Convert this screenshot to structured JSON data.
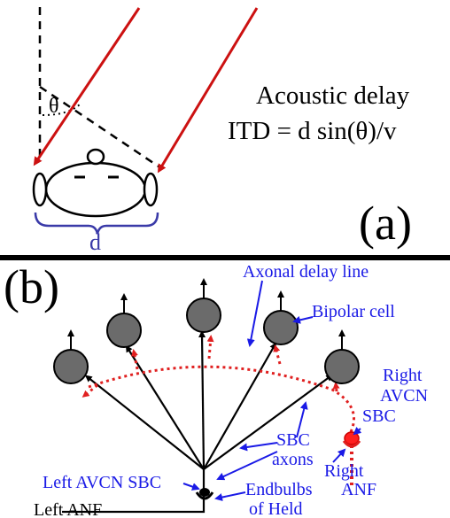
{
  "panel_a": {
    "label": "(a)",
    "theta": "θ",
    "d_label": "d",
    "acoustic_delay": "Acoustic delay",
    "itd_formula": "ITD = d sin(θ)/v"
  },
  "panel_b": {
    "label": "(b)",
    "labels": {
      "axonal_delay_line": "Axonal delay line",
      "bipolar_cell": "Bipolar cell",
      "right_avcn": "Right",
      "right_avcn_2": "AVCN",
      "right_sbc": "SBC",
      "sbc_axons_1": "SBC",
      "sbc_axons_2": "axons",
      "right_anf_1": "Right",
      "right_anf_2": "ANF",
      "left_avcn_sbc": "Left AVCN SBC",
      "endbulbs_1": "Endbulbs",
      "endbulbs_2": "of Held",
      "left_anf": "Left ANF"
    }
  },
  "colors": {
    "sound_ray": "#cc1111",
    "delay_line": "#e02020",
    "annotation_blue": "#1a1ae6",
    "cell_fill": "#6b6b6b",
    "text": "#000000"
  }
}
